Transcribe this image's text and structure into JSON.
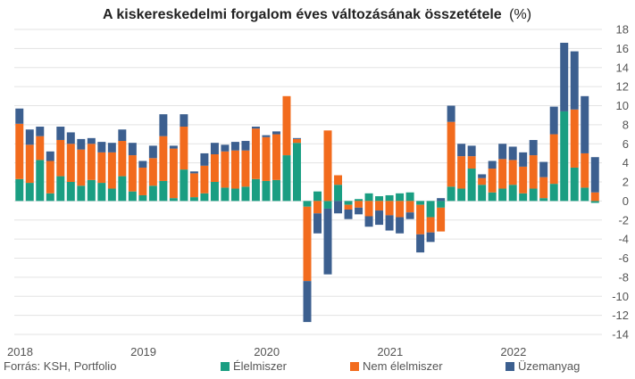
{
  "chart_data": {
    "type": "bar",
    "stacked": true,
    "title": "A kiskereskedelmi forgalom éves változásának összetétele",
    "title_unit": "(%)",
    "source": "Forrás: KSH, Portfolio",
    "ylim": [
      -14,
      18
    ],
    "yticks": [
      -14,
      -12,
      -10,
      -8,
      -6,
      -4,
      -2,
      0,
      2,
      4,
      6,
      8,
      10,
      12,
      14,
      16,
      18
    ],
    "grid": true,
    "legend_position": "bottom",
    "x_start": "2018-01",
    "x_labels": [
      "2018",
      "2019",
      "2020",
      "2021",
      "2022"
    ],
    "series": [
      {
        "name": "Élelmiszer",
        "color": "#1a9e82",
        "values": [
          2.3,
          1.9,
          4.3,
          0.8,
          2.6,
          2.0,
          1.6,
          2.2,
          1.9,
          1.3,
          2.6,
          1.0,
          0.6,
          1.6,
          2.1,
          0.3,
          3.3,
          0.4,
          0.8,
          2.0,
          1.4,
          1.3,
          1.5,
          2.3,
          2.1,
          2.2,
          4.8,
          6.1,
          -0.6,
          1.0,
          -0.8,
          1.7,
          -0.4,
          0.2,
          0.8,
          0.5,
          0.6,
          0.8,
          0.9,
          -0.4,
          -1.7,
          -0.7,
          1.5,
          1.3,
          3.4,
          1.7,
          0.9,
          1.3,
          1.7,
          0.8,
          1.3,
          0.3,
          1.8,
          9.4,
          3.5,
          1.4,
          -0.2
        ]
      },
      {
        "name": "Nem élelmiszer",
        "color": "#f26b1d",
        "values": [
          5.8,
          4.0,
          2.5,
          3.4,
          3.8,
          4.0,
          3.8,
          3.8,
          3.2,
          3.8,
          3.7,
          3.8,
          2.9,
          2.9,
          4.7,
          5.2,
          4.5,
          2.5,
          2.9,
          2.9,
          3.8,
          4.0,
          3.8,
          5.3,
          4.6,
          4.8,
          6.2,
          0.4,
          -7.8,
          -1.3,
          7.4,
          1.0,
          -0.5,
          -0.7,
          -1.6,
          -1.0,
          -1.5,
          -1.7,
          -1.2,
          -3.1,
          -1.6,
          -2.5,
          6.8,
          3.4,
          1.3,
          0.7,
          2.5,
          3.1,
          2.6,
          2.8,
          3.5,
          2.2,
          5.2,
          0.0,
          6.1,
          3.6,
          0.9
        ]
      },
      {
        "name": "Üzemanyag",
        "color": "#3c5f8f",
        "values": [
          1.6,
          1.6,
          1.0,
          1.0,
          1.4,
          1.2,
          1.1,
          0.6,
          1.1,
          1.0,
          1.2,
          1.3,
          0.7,
          1.3,
          2.3,
          0.3,
          1.3,
          0.2,
          1.3,
          1.2,
          0.7,
          0.9,
          1.0,
          0.2,
          0.2,
          0.3,
          0.0,
          0.1,
          -4.3,
          -2.1,
          -6.9,
          -1.3,
          -1.0,
          -0.7,
          -1.1,
          -1.5,
          -1.6,
          -1.7,
          -0.7,
          -1.9,
          -1.0,
          0.3,
          1.7,
          1.3,
          1.1,
          0.4,
          0.8,
          1.6,
          1.4,
          1.5,
          1.6,
          1.6,
          2.9,
          7.2,
          6.1,
          6.0,
          3.7
        ]
      }
    ]
  }
}
